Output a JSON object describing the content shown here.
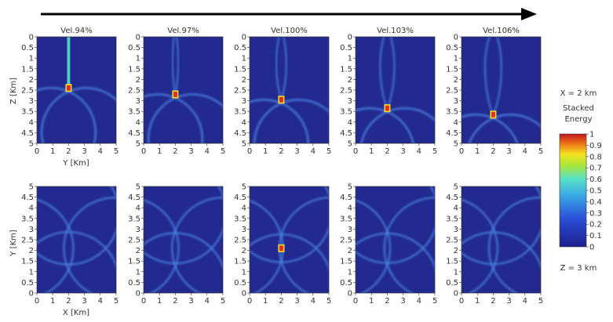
{
  "top_row": {
    "axis_left_label": "Z [Km]",
    "axis_bottom_label": "Y [Km]",
    "panels": [
      {
        "title": "Vel.94%"
      },
      {
        "title": "Vel.97%"
      },
      {
        "title": "Vel.100%"
      },
      {
        "title": "Vel.103%"
      },
      {
        "title": "Vel.106%"
      }
    ]
  },
  "bottom_row": {
    "axis_left_label": "Y [Km]",
    "axis_bottom_label": "X [Km]"
  },
  "ticks": {
    "top_y": [
      "0",
      "0.5",
      "1",
      "1.5",
      "2",
      "2.5",
      "3",
      "3.5",
      "4",
      "4.5",
      "5"
    ],
    "bottom_y": [
      "5",
      "4.5",
      "4",
      "3.5",
      "3",
      "2.5",
      "2",
      "1.5",
      "1",
      "0.5",
      "0"
    ],
    "x": [
      "0",
      "1",
      "2",
      "3",
      "4",
      "5"
    ]
  },
  "legend": {
    "top_note": "X = 2 km",
    "title_line1": "Stacked",
    "title_line2": "Energy",
    "bottom_note": "Z = 3 km",
    "ticks": [
      "1",
      "0.9",
      "0.8",
      "0.7",
      "0.6",
      "0.5",
      "0.4",
      "0.3",
      "0.2",
      "0.1",
      "0"
    ]
  },
  "colors": {
    "background": "#222a8f",
    "arc": "#4a7fe0",
    "focus": "#e0301e"
  }
}
